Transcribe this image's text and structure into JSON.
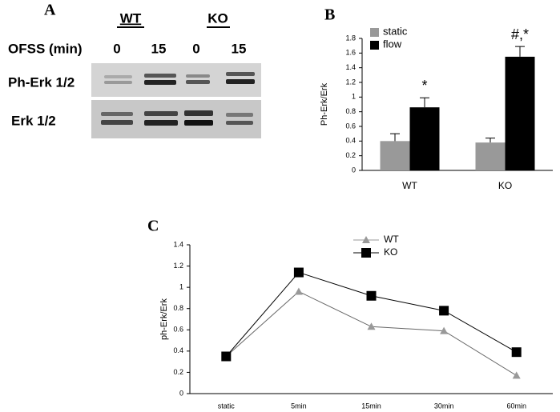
{
  "blot": {
    "panel": "A",
    "groups": [
      "WT",
      "KO"
    ],
    "row_label": "OFSS (min)",
    "times": [
      0,
      15,
      0,
      15
    ],
    "bands": [
      "Ph-Erk 1/2",
      "Erk 1/2"
    ]
  },
  "chart_data": [
    {
      "type": "bar",
      "panel": "B",
      "y_label": "Ph-Erk/Erk",
      "categories": [
        "WT",
        "KO"
      ],
      "series": [
        {
          "name": "static",
          "color": "#999999",
          "values": [
            0.4,
            0.38
          ],
          "errors": [
            0.1,
            0.06
          ]
        },
        {
          "name": "flow",
          "color": "#000000",
          "values": [
            0.86,
            1.55
          ],
          "errors": [
            0.13,
            0.14
          ]
        }
      ],
      "annotations": [
        "*",
        "#,*"
      ],
      "ylim": [
        0,
        1.8
      ],
      "yticks": [
        0,
        0.2,
        0.4,
        0.6,
        0.8,
        1,
        1.2,
        1.4,
        1.6,
        1.8
      ],
      "legend": "upper left"
    },
    {
      "type": "line",
      "panel": "C",
      "y_label": "ph-Erk/Erk",
      "categories": [
        "static",
        "5min",
        "15min",
        "30min",
        "60min"
      ],
      "series": [
        {
          "name": "WT",
          "color": "#999999",
          "marker": "triangle",
          "values": [
            0.35,
            0.96,
            0.63,
            0.59,
            0.17
          ]
        },
        {
          "name": "KO",
          "color": "#000000",
          "marker": "square",
          "values": [
            0.35,
            1.14,
            0.92,
            0.78,
            0.39
          ]
        }
      ],
      "ylim": [
        0,
        1.4
      ],
      "yticks": [
        0,
        0.2,
        0.4,
        0.6,
        0.8,
        1,
        1.2,
        1.4
      ],
      "legend": "upper right"
    }
  ]
}
